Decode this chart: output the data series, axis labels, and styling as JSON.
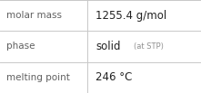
{
  "rows": [
    {
      "label": "molar mass",
      "value": "1255.4 g/mol",
      "value2": null
    },
    {
      "label": "phase",
      "value": "solid",
      "value2": "(at STP)"
    },
    {
      "label": "melting point",
      "value": "246 °C",
      "value2": null
    }
  ],
  "bg_color": "#ffffff",
  "border_color": "#c8c8c8",
  "label_color": "#606060",
  "value_color": "#222222",
  "label_fontsize": 7.5,
  "value_fontsize": 8.5,
  "value2_fontsize": 6.0,
  "value2_color": "#909090",
  "col_split": 0.435
}
